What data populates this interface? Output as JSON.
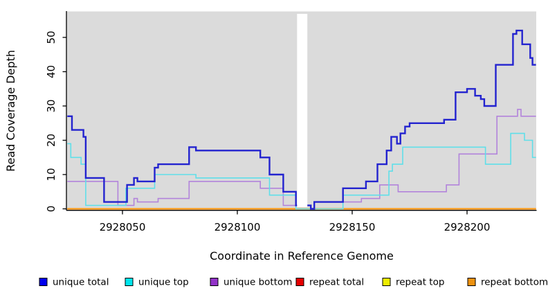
{
  "figure": {
    "y_axis": {
      "label": "Read Coverage Depth"
    },
    "x_axis": {
      "label": "Coordinate in Reference Genome"
    }
  },
  "legend": {
    "items": [
      {
        "label": "unique total",
        "color": "#0000EE"
      },
      {
        "label": "unique top",
        "color": "#00E6EE"
      },
      {
        "label": "unique bottom",
        "color": "#9232C8"
      },
      {
        "label": "repeat total",
        "color": "#E60000"
      },
      {
        "label": "repeat top",
        "color": "#EEEE00"
      },
      {
        "label": "repeat bottom",
        "color": "#EE9210"
      }
    ]
  },
  "chart_data": {
    "type": "line",
    "subtype": "step-after",
    "title": "",
    "xlabel": "Coordinate in Reference Genome",
    "ylabel": "Read Coverage Depth",
    "x_range": [
      2928026,
      2928230
    ],
    "ylim": [
      0,
      53
    ],
    "x_ticks": [
      2928050,
      2928100,
      2928150,
      2928200
    ],
    "y_ticks": [
      0,
      10,
      20,
      30,
      40,
      50
    ],
    "grid": false,
    "panel_bg": "#DBDBDB",
    "gap_x": [
      2928126,
      2928130.5
    ],
    "legend_position": "bottom",
    "series": [
      {
        "name": "repeat total",
        "color": "#DE0000",
        "width": 1.5,
        "points": [
          [
            2928026,
            0
          ]
        ]
      },
      {
        "name": "repeat top",
        "color": "#EEEE00",
        "width": 1.5,
        "points": [
          [
            2928026,
            0
          ]
        ]
      },
      {
        "name": "repeat bottom",
        "color": "#FF9711",
        "width": 2.2,
        "points": [
          [
            2928026,
            0
          ]
        ]
      },
      {
        "name": "unique bottom",
        "color": "#B283DB",
        "width": 1.6,
        "points": [
          [
            2928026,
            8
          ],
          [
            2928048,
            1
          ],
          [
            2928055,
            3
          ],
          [
            2928056.5,
            2
          ],
          [
            2928065.5,
            3
          ],
          [
            2928079,
            8
          ],
          [
            2928110,
            6
          ],
          [
            2928120,
            1
          ],
          [
            2928132,
            0
          ],
          [
            2928133.5,
            2
          ],
          [
            2928154,
            3
          ],
          [
            2928162,
            7
          ],
          [
            2928170,
            5
          ],
          [
            2928191,
            7
          ],
          [
            2928196.5,
            16
          ],
          [
            2928213,
            27
          ],
          [
            2928222,
            29
          ],
          [
            2928223.5,
            27
          ]
        ]
      },
      {
        "name": "unique top",
        "color": "#5FDFE9",
        "width": 1.6,
        "points": [
          [
            2928026,
            19
          ],
          [
            2928027.5,
            15
          ],
          [
            2928032,
            13
          ],
          [
            2928034,
            1
          ],
          [
            2928051.5,
            6
          ],
          [
            2928064,
            10
          ],
          [
            2928082,
            9
          ],
          [
            2928114,
            4
          ],
          [
            2928125.5,
            0
          ],
          [
            2928146,
            4
          ],
          [
            2928166,
            11
          ],
          [
            2928167.5,
            13
          ],
          [
            2928172,
            18
          ],
          [
            2928208,
            13
          ],
          [
            2928219,
            22
          ],
          [
            2928225,
            20
          ],
          [
            2928228.5,
            15
          ]
        ]
      },
      {
        "name": "unique total",
        "color": "#2323CF",
        "width": 2.4,
        "points": [
          [
            2928026,
            27
          ],
          [
            2928028,
            23
          ],
          [
            2928033,
            21
          ],
          [
            2928034,
            9
          ],
          [
            2928042,
            2
          ],
          [
            2928052,
            7
          ],
          [
            2928055,
            9
          ],
          [
            2928056.5,
            8
          ],
          [
            2928064,
            12
          ],
          [
            2928065.5,
            13
          ],
          [
            2928079,
            18
          ],
          [
            2928082,
            17
          ],
          [
            2928110,
            15
          ],
          [
            2928114,
            10
          ],
          [
            2928120,
            5
          ],
          [
            2928125.5,
            1
          ],
          [
            2928132,
            0
          ],
          [
            2928133.5,
            2
          ],
          [
            2928146,
            6
          ],
          [
            2928156,
            8
          ],
          [
            2928161,
            13
          ],
          [
            2928165,
            17
          ],
          [
            2928167,
            21
          ],
          [
            2928169.5,
            19
          ],
          [
            2928171,
            22
          ],
          [
            2928173,
            24
          ],
          [
            2928175,
            25
          ],
          [
            2928190,
            26
          ],
          [
            2928195,
            34
          ],
          [
            2928200,
            35
          ],
          [
            2928203.5,
            33
          ],
          [
            2928206,
            32
          ],
          [
            2928207.5,
            30
          ],
          [
            2928212.5,
            42
          ],
          [
            2928220,
            51
          ],
          [
            2928221.5,
            52
          ],
          [
            2928224,
            48
          ],
          [
            2928227.5,
            44
          ],
          [
            2928228.5,
            42
          ]
        ]
      }
    ]
  }
}
